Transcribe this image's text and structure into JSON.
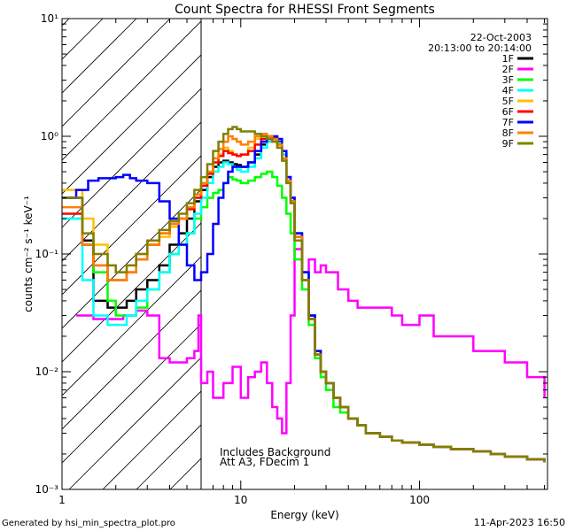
{
  "chart_data": {
    "type": "line",
    "title": "Count Spectra for RHESSI Front Segments",
    "xlabel": "Energy (keV)",
    "ylabel": "counts cm⁻² s⁻¹ keV⁻¹",
    "xscale": "log",
    "yscale": "log",
    "xlim": [
      1,
      520
    ],
    "ylim": [
      0.001,
      10
    ],
    "x_ticks": [
      {
        "value": 1,
        "label": "1"
      },
      {
        "value": 10,
        "label": "10"
      },
      {
        "value": 100,
        "label": "100"
      }
    ],
    "y_ticks": [
      {
        "value": 0.001,
        "label": "10⁻³"
      },
      {
        "value": 0.01,
        "label": "10⁻²"
      },
      {
        "value": 0.1,
        "label": "10⁻¹"
      },
      {
        "value": 1,
        "label": "10⁰"
      },
      {
        "value": 10,
        "label": "10¹"
      }
    ],
    "date": "22-Oct-2003",
    "time_range": "20:13:00 to 20:14:00",
    "hatched_region_xmax": 6,
    "annotations": [
      "Includes Background",
      "Att A3, FDecim 1"
    ],
    "legend_position": "top-right",
    "series": [
      {
        "name": "1F",
        "color": "#000000",
        "x": [
          1.0,
          1.3,
          1.5,
          1.8,
          2.0,
          2.3,
          2.6,
          3.0,
          3.5,
          4.0,
          4.5,
          5.0,
          5.5,
          6.0,
          6.5,
          7.0,
          7.5,
          8.0,
          8.5,
          9.0,
          9.5,
          10.0,
          11,
          12,
          13,
          14,
          15,
          16,
          17,
          18,
          19,
          20,
          22,
          24,
          26,
          28,
          30,
          33,
          36,
          40,
          45,
          50,
          60,
          70,
          80,
          100,
          120,
          150,
          200,
          250,
          300,
          400,
          500
        ],
        "y": [
          0.3,
          0.13,
          0.04,
          0.035,
          0.035,
          0.04,
          0.05,
          0.06,
          0.08,
          0.12,
          0.15,
          0.2,
          0.28,
          0.35,
          0.45,
          0.55,
          0.6,
          0.62,
          0.6,
          0.58,
          0.57,
          0.55,
          0.6,
          0.7,
          0.85,
          0.95,
          0.98,
          0.9,
          0.7,
          0.45,
          0.3,
          0.15,
          0.07,
          0.03,
          0.015,
          0.01,
          0.008,
          0.006,
          0.005,
          0.004,
          0.0035,
          0.003,
          0.0028,
          0.0026,
          0.0025,
          0.0024,
          0.0023,
          0.0022,
          0.0021,
          0.002,
          0.0019,
          0.0018,
          0.0017
        ]
      },
      {
        "name": "2F",
        "color": "#ff00ff",
        "x": [
          1.2,
          1.5,
          1.8,
          2.2,
          2.6,
          3.0,
          3.5,
          4.0,
          4.5,
          5.0,
          5.5,
          5.8,
          6.0,
          6.5,
          7.0,
          8.0,
          9.0,
          10.0,
          11,
          12,
          13,
          14,
          15,
          16,
          17,
          18,
          19,
          20,
          22,
          24,
          26,
          28,
          30,
          35,
          40,
          45,
          50,
          60,
          70,
          80,
          100,
          120,
          150,
          200,
          250,
          300,
          400,
          500
        ],
        "y": [
          0.03,
          0.028,
          0.028,
          0.03,
          0.033,
          0.03,
          0.013,
          0.012,
          0.012,
          0.013,
          0.015,
          0.03,
          0.008,
          0.01,
          0.006,
          0.008,
          0.011,
          0.006,
          0.009,
          0.01,
          0.012,
          0.008,
          0.005,
          0.004,
          0.003,
          0.008,
          0.03,
          0.11,
          0.07,
          0.09,
          0.07,
          0.08,
          0.07,
          0.05,
          0.04,
          0.035,
          0.035,
          0.035,
          0.03,
          0.025,
          0.03,
          0.02,
          0.02,
          0.015,
          0.015,
          0.012,
          0.009,
          0.006
        ]
      },
      {
        "name": "3F",
        "color": "#00ff00",
        "x": [
          1.0,
          1.3,
          1.5,
          1.8,
          2.0,
          2.3,
          2.6,
          3.0,
          3.5,
          4.0,
          4.5,
          5.0,
          5.5,
          6.0,
          6.5,
          7.0,
          7.5,
          8.0,
          8.5,
          9.0,
          9.5,
          10.0,
          11,
          12,
          13,
          14,
          15,
          16,
          17,
          18,
          19,
          20,
          22,
          24,
          26,
          28,
          30,
          33,
          36,
          40,
          45,
          50,
          60,
          70,
          80,
          100,
          120,
          150,
          200,
          250,
          300,
          400,
          500
        ],
        "y": [
          0.2,
          0.12,
          0.07,
          0.04,
          0.03,
          0.03,
          0.035,
          0.05,
          0.07,
          0.1,
          0.12,
          0.15,
          0.2,
          0.25,
          0.3,
          0.33,
          0.35,
          0.4,
          0.45,
          0.43,
          0.42,
          0.4,
          0.42,
          0.45,
          0.48,
          0.5,
          0.45,
          0.38,
          0.3,
          0.22,
          0.15,
          0.09,
          0.05,
          0.025,
          0.013,
          0.009,
          0.007,
          0.005,
          0.0045,
          0.004,
          0.0035,
          0.003,
          0.0028,
          0.0026,
          0.0025,
          0.0024,
          0.0023,
          0.0022,
          0.0021,
          0.002,
          0.0019,
          0.0018,
          0.0017
        ]
      },
      {
        "name": "4F",
        "color": "#00ffff",
        "x": [
          1.0,
          1.3,
          1.5,
          1.8,
          2.0,
          2.3,
          2.6,
          3.0,
          3.5,
          4.0,
          4.5,
          5.0,
          5.5,
          6.0,
          6.5,
          7.0,
          7.5,
          8.0,
          8.5,
          9.0,
          9.5,
          10.0,
          11,
          12,
          13,
          14,
          15,
          16,
          17,
          18,
          19,
          20,
          22,
          24,
          26,
          28,
          30,
          33,
          36,
          40,
          45,
          50,
          60,
          70,
          80,
          100,
          120,
          150,
          200,
          250,
          300,
          400,
          500
        ],
        "y": [
          0.2,
          0.06,
          0.03,
          0.025,
          0.025,
          0.03,
          0.04,
          0.05,
          0.07,
          0.1,
          0.12,
          0.15,
          0.22,
          0.3,
          0.4,
          0.5,
          0.55,
          0.6,
          0.58,
          0.55,
          0.52,
          0.5,
          0.55,
          0.65,
          0.8,
          0.9,
          0.95,
          0.88,
          0.7,
          0.45,
          0.3,
          0.15,
          0.07,
          0.03,
          0.015,
          0.01,
          0.008,
          0.006,
          0.005,
          0.004,
          0.0035,
          0.003,
          0.0028,
          0.0026,
          0.0025,
          0.0024,
          0.0023,
          0.0022,
          0.0021,
          0.002,
          0.0019,
          0.0018,
          0.0017
        ]
      },
      {
        "name": "5F",
        "color": "#ffc000",
        "x": [
          1.0,
          1.3,
          1.5,
          1.8,
          2.0,
          2.3,
          2.6,
          3.0,
          3.5,
          4.0,
          4.5,
          5.0,
          5.5,
          6.0,
          6.5,
          7.0,
          7.5,
          8.0,
          8.5,
          9.0,
          9.5,
          10.0,
          11,
          12,
          13,
          14,
          15,
          16,
          17,
          18,
          19,
          20,
          22,
          24,
          26,
          28,
          30,
          33,
          36,
          40,
          45,
          50,
          60,
          70,
          80,
          100,
          120,
          150,
          200,
          250,
          300,
          400,
          500
        ],
        "y": [
          0.35,
          0.2,
          0.12,
          0.08,
          0.07,
          0.08,
          0.1,
          0.12,
          0.14,
          0.17,
          0.2,
          0.24,
          0.3,
          0.38,
          0.48,
          0.6,
          0.7,
          0.8,
          0.75,
          0.7,
          0.68,
          0.7,
          0.8,
          0.95,
          1.0,
          0.95,
          0.9,
          0.8,
          0.65,
          0.42,
          0.28,
          0.14,
          0.06,
          0.028,
          0.014,
          0.01,
          0.008,
          0.006,
          0.005,
          0.004,
          0.0035,
          0.003,
          0.0028,
          0.0026,
          0.0025,
          0.0024,
          0.0023,
          0.0022,
          0.0021,
          0.002,
          0.0019,
          0.0018,
          0.0017
        ]
      },
      {
        "name": "6F",
        "color": "#ff0000",
        "x": [
          1.0,
          1.3,
          1.5,
          1.8,
          2.0,
          2.3,
          2.6,
          3.0,
          3.5,
          4.0,
          4.5,
          5.0,
          5.5,
          6.0,
          6.5,
          7.0,
          7.5,
          8.0,
          8.5,
          9.0,
          9.5,
          10.0,
          11,
          12,
          13,
          14,
          15,
          16,
          17,
          18,
          19,
          20,
          22,
          24,
          26,
          28,
          30,
          33,
          36,
          40,
          45,
          50,
          60,
          70,
          80,
          100,
          120,
          150,
          200,
          250,
          300,
          400,
          500
        ],
        "y": [
          0.22,
          0.12,
          0.08,
          0.06,
          0.06,
          0.07,
          0.09,
          0.12,
          0.15,
          0.18,
          0.2,
          0.24,
          0.3,
          0.38,
          0.48,
          0.6,
          0.68,
          0.75,
          0.72,
          0.7,
          0.68,
          0.7,
          0.75,
          0.85,
          0.95,
          1.0,
          0.95,
          0.85,
          0.65,
          0.42,
          0.28,
          0.14,
          0.06,
          0.028,
          0.014,
          0.01,
          0.008,
          0.006,
          0.005,
          0.004,
          0.0035,
          0.003,
          0.0028,
          0.0026,
          0.0025,
          0.0024,
          0.0023,
          0.0022,
          0.0021,
          0.002,
          0.0019,
          0.0018,
          0.0017
        ]
      },
      {
        "name": "7F",
        "color": "#0000ff",
        "x": [
          1.0,
          1.2,
          1.4,
          1.6,
          1.8,
          2.0,
          2.2,
          2.4,
          2.6,
          3.0,
          3.5,
          4.0,
          4.5,
          5.0,
          5.5,
          6.0,
          6.5,
          7.0,
          7.5,
          8.0,
          8.5,
          9.0,
          9.5,
          10.0,
          11,
          12,
          13,
          14,
          15,
          16,
          17,
          18,
          19,
          20,
          22,
          24,
          26,
          28,
          30,
          33,
          36,
          40,
          45,
          50,
          60,
          70,
          80,
          100,
          120,
          150,
          200,
          250,
          300,
          400,
          500
        ],
        "y": [
          0.3,
          0.35,
          0.42,
          0.44,
          0.44,
          0.45,
          0.47,
          0.44,
          0.42,
          0.4,
          0.28,
          0.2,
          0.12,
          0.08,
          0.06,
          0.07,
          0.1,
          0.18,
          0.3,
          0.4,
          0.5,
          0.55,
          0.55,
          0.55,
          0.6,
          0.75,
          0.9,
          0.95,
          1.0,
          0.95,
          0.75,
          0.45,
          0.3,
          0.15,
          0.07,
          0.03,
          0.015,
          0.01,
          0.008,
          0.006,
          0.005,
          0.004,
          0.0035,
          0.003,
          0.0028,
          0.0026,
          0.0025,
          0.0024,
          0.0023,
          0.0022,
          0.0021,
          0.002,
          0.0019,
          0.0018,
          0.0017
        ]
      },
      {
        "name": "8F",
        "color": "#ff8000",
        "x": [
          1.0,
          1.3,
          1.5,
          1.8,
          2.0,
          2.3,
          2.6,
          3.0,
          3.5,
          4.0,
          4.5,
          5.0,
          5.5,
          6.0,
          6.5,
          7.0,
          7.5,
          8.0,
          8.5,
          9.0,
          9.5,
          10.0,
          11,
          12,
          13,
          14,
          15,
          16,
          17,
          18,
          19,
          20,
          22,
          24,
          26,
          28,
          30,
          33,
          36,
          40,
          45,
          50,
          60,
          70,
          80,
          100,
          120,
          150,
          200,
          250,
          300,
          400,
          500
        ],
        "y": [
          0.25,
          0.12,
          0.08,
          0.06,
          0.06,
          0.07,
          0.09,
          0.12,
          0.15,
          0.18,
          0.2,
          0.25,
          0.32,
          0.4,
          0.5,
          0.65,
          0.78,
          0.9,
          1.0,
          0.95,
          0.9,
          0.85,
          0.9,
          1.0,
          1.05,
          1.0,
          0.95,
          0.85,
          0.65,
          0.42,
          0.28,
          0.14,
          0.06,
          0.028,
          0.014,
          0.01,
          0.008,
          0.006,
          0.005,
          0.004,
          0.0035,
          0.003,
          0.0028,
          0.0026,
          0.0025,
          0.0024,
          0.0023,
          0.0022,
          0.0021,
          0.002,
          0.0019,
          0.0018,
          0.0017
        ]
      },
      {
        "name": "9F",
        "color": "#808000",
        "x": [
          1.0,
          1.3,
          1.5,
          1.8,
          2.0,
          2.3,
          2.6,
          3.0,
          3.5,
          4.0,
          4.5,
          5.0,
          5.5,
          6.0,
          6.5,
          7.0,
          7.5,
          8.0,
          8.5,
          9.0,
          9.5,
          10.0,
          11,
          12,
          13,
          14,
          15,
          16,
          17,
          18,
          19,
          20,
          22,
          24,
          26,
          28,
          30,
          33,
          36,
          40,
          45,
          50,
          60,
          70,
          80,
          100,
          120,
          150,
          200,
          250,
          300,
          400,
          500
        ],
        "y": [
          0.3,
          0.15,
          0.1,
          0.08,
          0.07,
          0.08,
          0.1,
          0.13,
          0.16,
          0.19,
          0.22,
          0.27,
          0.35,
          0.45,
          0.58,
          0.75,
          0.9,
          1.05,
          1.15,
          1.2,
          1.15,
          1.1,
          1.1,
          1.05,
          1.0,
          0.95,
          0.9,
          0.8,
          0.62,
          0.4,
          0.27,
          0.13,
          0.06,
          0.028,
          0.014,
          0.01,
          0.008,
          0.006,
          0.005,
          0.004,
          0.0035,
          0.003,
          0.0028,
          0.0026,
          0.0025,
          0.0024,
          0.0023,
          0.0022,
          0.0021,
          0.002,
          0.0019,
          0.0018,
          0.0017
        ]
      }
    ]
  },
  "footer": {
    "left": "Generated by hsi_min_spectra_plot.pro",
    "right": "11-Apr-2023 16:50"
  }
}
